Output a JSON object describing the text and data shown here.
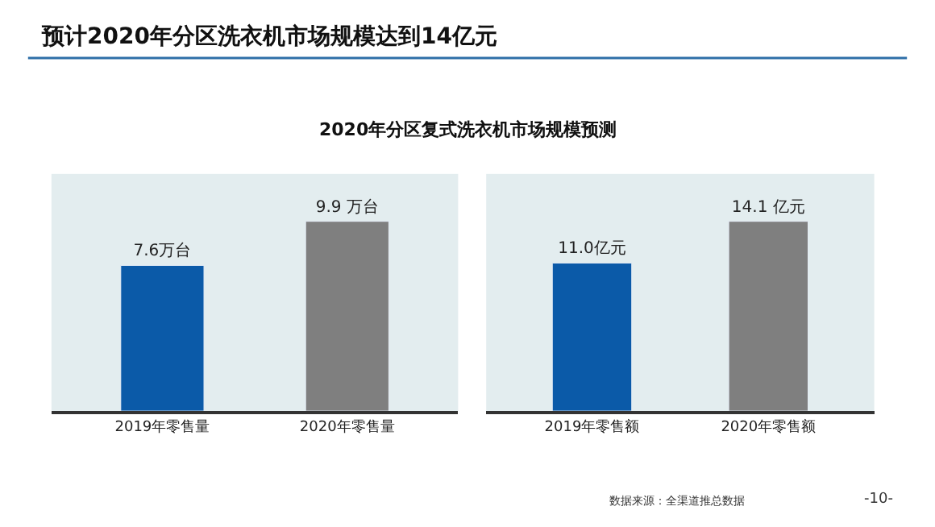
{
  "chart_data": [
    {
      "type": "bar",
      "title": "预计2020年分区洗衣机市场规模达到14亿元",
      "subtitle": "2020年分区复式洗衣机市场规模预测",
      "categories": [
        "2019年零售量",
        "2020年零售量"
      ],
      "values": [
        7.6,
        9.9
      ],
      "value_labels": [
        "7.6万台",
        "9.9 万台"
      ],
      "colors": [
        "#0b5aa8",
        "#7f7f7f"
      ],
      "grid": false,
      "legend": false
    },
    {
      "type": "bar",
      "categories": [
        "2019年零售额",
        "2020年零售额"
      ],
      "values": [
        11.0,
        14.1
      ],
      "value_labels": [
        "11.0亿元",
        "14.1 亿元"
      ],
      "colors": [
        "#0b5aa8",
        "#7f7f7f"
      ],
      "grid": false,
      "legend": false,
      "annotations": [
        "数据来源：全渠道推总数据",
        "-10-"
      ]
    }
  ]
}
